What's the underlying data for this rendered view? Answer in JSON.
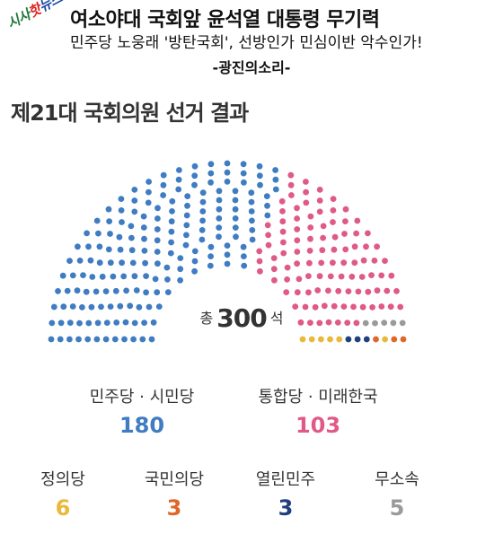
{
  "header": {
    "logo": [
      "시사",
      "핫",
      "뉴스"
    ],
    "headline1": "여소야대 국회앞 윤석열 대통령 무기력",
    "headline2": "민주당 노웅래 '방탄국회', 선방인가 민심이반 악수인가!",
    "source": "-광진의소리-"
  },
  "chart_data": {
    "type": "hemicycle",
    "title": "제21대 국회의원 선거 결과",
    "total": {
      "prefix": "총",
      "value": 300,
      "suffix": "석"
    },
    "series": [
      {
        "name": "민주당 · 시민당",
        "values": [
          180
        ],
        "color": "#3f7cc2"
      },
      {
        "name": "통합당 · 미래한국",
        "values": [
          103
        ],
        "color": "#df5a86"
      },
      {
        "name": "무소속",
        "values": [
          5
        ],
        "color": "#9a9a9a"
      },
      {
        "name": "정의당",
        "values": [
          6
        ],
        "color": "#e8b93a"
      },
      {
        "name": "열린민주",
        "values": [
          3
        ],
        "color": "#1f3f7d"
      },
      {
        "name": "국민의당",
        "values": [
          3
        ],
        "color": "#e0662a"
      }
    ]
  },
  "legend": {
    "major": [
      {
        "label": "민주당 · 시민당",
        "value": "180",
        "color": "#3f7cc2"
      },
      {
        "label": "통합당 · 미래한국",
        "value": "103",
        "color": "#df5a86"
      }
    ],
    "minor": [
      {
        "label": "정의당",
        "value": "6",
        "color": "#e8b93a"
      },
      {
        "label": "국민의당",
        "value": "3",
        "color": "#e0662a"
      },
      {
        "label": "열린민주",
        "value": "3",
        "color": "#1f3f7d"
      },
      {
        "label": "무소속",
        "value": "5",
        "color": "#9a9a9a"
      }
    ]
  }
}
